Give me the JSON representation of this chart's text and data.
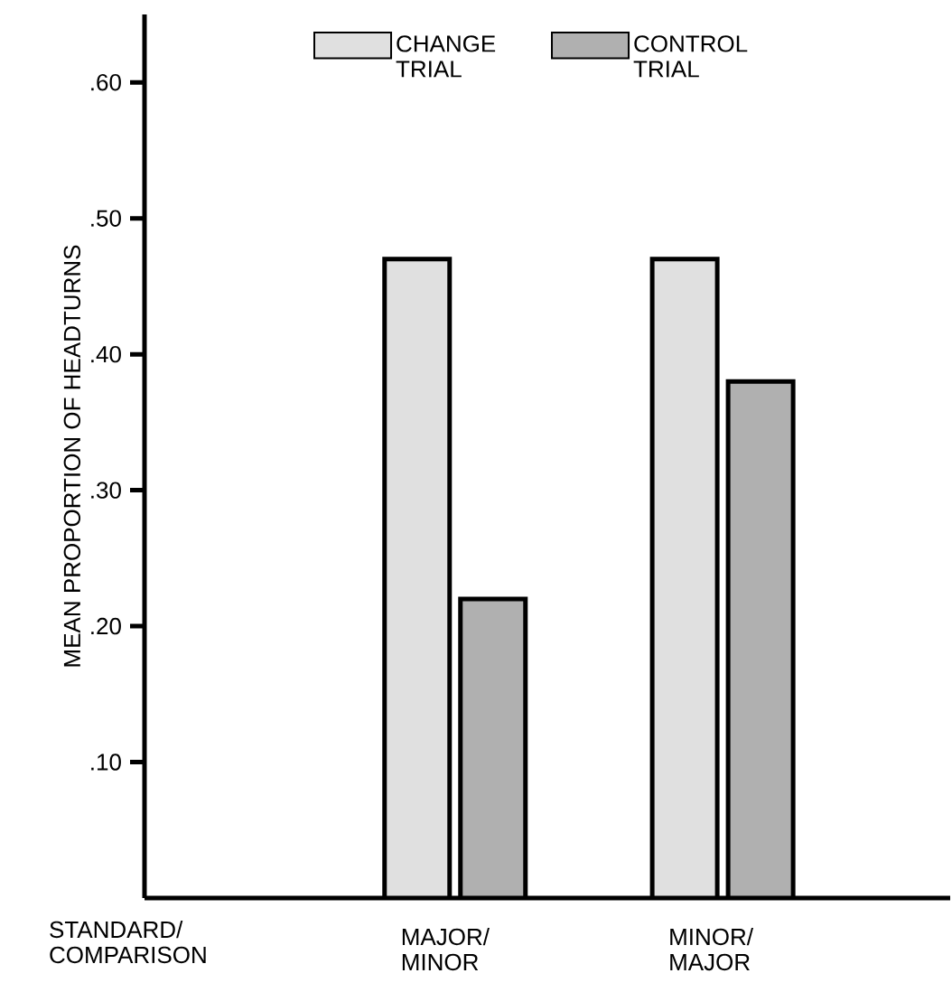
{
  "chart_data": {
    "type": "bar",
    "xlabel": "STANDARD/ COMPARISON",
    "ylabel": "MEAN PROPORTION OF HEADTURNS",
    "categories": [
      "MAJOR/ MINOR",
      "MINOR/ MAJOR"
    ],
    "series": [
      {
        "name": "CHANGE TRIAL",
        "color": "#e0e0e0",
        "values": [
          0.47,
          0.47
        ]
      },
      {
        "name": "CONTROL TRIAL",
        "color": "#b0b0b0",
        "values": [
          0.22,
          0.38
        ]
      }
    ],
    "ylim": [
      0,
      0.65
    ],
    "yticks": [
      {
        "value": 0.1,
        "label": ".10"
      },
      {
        "value": 0.2,
        "label": ".20"
      },
      {
        "value": 0.3,
        "label": ".30"
      },
      {
        "value": 0.4,
        "label": ".40"
      },
      {
        "value": 0.5,
        "label": ".50"
      },
      {
        "value": 0.6,
        "label": ".60"
      }
    ],
    "legend": "top",
    "grid": false
  }
}
